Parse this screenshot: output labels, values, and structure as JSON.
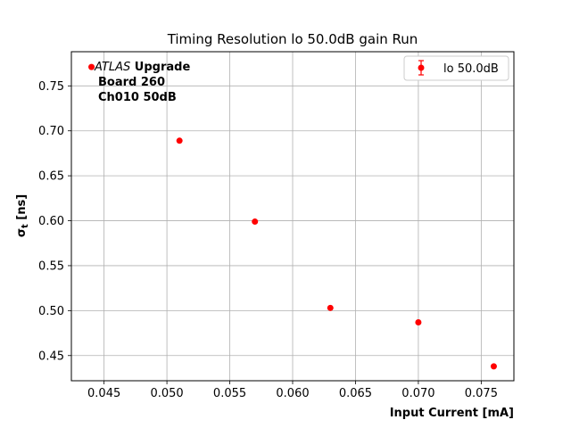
{
  "chart_data": {
    "type": "scatter",
    "title": "Timing Resolution lo 50.0dB gain Run",
    "xlabel": "Input Current [mA]",
    "ylabel_main": "σ",
    "ylabel_sub": "t",
    "ylabel_unit": " [ns]",
    "xlim": [
      0.0424,
      0.0776
    ],
    "ylim": [
      0.422,
      0.788
    ],
    "xticks": [
      0.045,
      0.05,
      0.055,
      0.06,
      0.065,
      0.07,
      0.075
    ],
    "xtick_labels": [
      "0.045",
      "0.050",
      "0.055",
      "0.060",
      "0.065",
      "0.070",
      "0.075"
    ],
    "yticks": [
      0.45,
      0.5,
      0.55,
      0.6,
      0.65,
      0.7,
      0.75
    ],
    "ytick_labels": [
      "0.45",
      "0.50",
      "0.55",
      "0.60",
      "0.65",
      "0.70",
      "0.75"
    ],
    "grid": true,
    "legend_position": "top-right",
    "series": [
      {
        "name": "lo 50.0dB",
        "color": "#ff0000",
        "x": [
          0.044,
          0.051,
          0.057,
          0.063,
          0.07,
          0.076
        ],
        "y": [
          0.771,
          0.689,
          0.599,
          0.503,
          0.487,
          0.438
        ]
      }
    ],
    "annotation": {
      "italic": "ATLAS",
      "bold": " Upgrade",
      "line2": "Board 260",
      "line3": "Ch010 50dB"
    }
  }
}
